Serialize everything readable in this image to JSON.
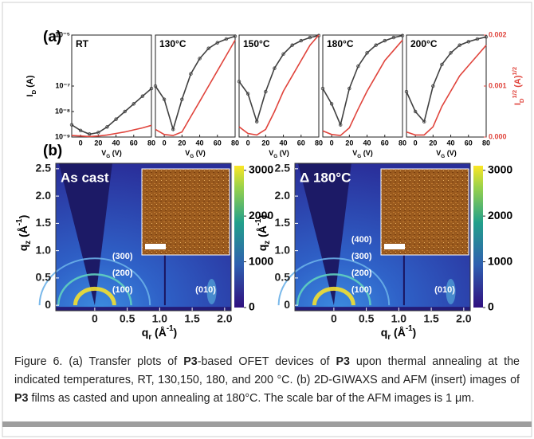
{
  "figure": {
    "panel_a": {
      "label": "(a)",
      "ylabel": [
        "I",
        "D",
        " (A)"
      ],
      "y2label": [
        "I",
        "D",
        "1/2",
        " (A)",
        "1/2"
      ],
      "xlabel": [
        "V",
        "G",
        " (V)"
      ],
      "log_y": true,
      "xlim": [
        -10,
        80
      ],
      "xticks": [
        0,
        20,
        40,
        60,
        80
      ],
      "ylim": [
        1e-09,
        1e-05
      ],
      "yticks": [
        {
          "value": 1e-09,
          "label": "10⁻⁹"
        },
        {
          "value": 1e-08,
          "label": "10⁻⁸"
        },
        {
          "value": 1e-07,
          "label": "10⁻⁷"
        },
        {
          "value": 1e-05,
          "label": "10⁻⁵"
        }
      ],
      "y2lim": [
        0,
        0.002
      ],
      "y2ticks": [
        {
          "value": 0,
          "label": "0.000"
        },
        {
          "value": 0.001,
          "label": "0.001"
        },
        {
          "value": 0.002,
          "label": "0.002"
        }
      ],
      "x": [
        -10,
        0,
        10,
        20,
        30,
        40,
        50,
        60,
        70,
        80
      ],
      "plots": [
        {
          "title": "RT",
          "series": [
            {
              "color": "#404040",
              "values": [
                3e-09,
                1.8e-09,
                1.3e-09,
                1.5e-09,
                2.5e-09,
                5e-09,
                1e-08,
                2e-08,
                4e-08,
                8e-08
              ]
            },
            {
              "color": "#e0443c",
              "axis": "y2",
              "values": [
                3e-05,
                2e-05,
                1e-05,
                2e-05,
                4e-05,
                7e-05,
                0.0001,
                0.00014,
                0.00018,
                0.00023
              ]
            }
          ]
        },
        {
          "title": "130°C",
          "series": [
            {
              "color": "#404040",
              "values": [
                1e-07,
                3e-08,
                2e-09,
                3e-08,
                3e-07,
                1.2e-06,
                3e-06,
                5e-06,
                7e-06,
                9e-06
              ]
            },
            {
              "color": "#e0443c",
              "axis": "y2",
              "values": [
                0.00015,
                5e-05,
                3e-05,
                0.0001,
                0.0004,
                0.0007,
                0.001,
                0.0013,
                0.0016,
                0.0019
              ]
            }
          ]
        },
        {
          "title": "150°C",
          "series": [
            {
              "color": "#404040",
              "values": [
                1.5e-07,
                5e-08,
                4e-09,
                6e-08,
                5e-07,
                1.8e-06,
                4e-06,
                6e-06,
                8e-06,
                9.5e-06
              ]
            },
            {
              "color": "#e0443c",
              "axis": "y2",
              "values": [
                0.0002,
                7e-05,
                4e-05,
                0.00015,
                0.0005,
                0.0009,
                0.0012,
                0.0015,
                0.0018,
                0.002
              ]
            }
          ]
        },
        {
          "title": "180°C",
          "series": [
            {
              "color": "#404040",
              "values": [
                8e-08,
                2e-08,
                3e-09,
                8e-08,
                6e-07,
                2e-06,
                4e-06,
                6e-06,
                8e-06,
                9.5e-06
              ]
            },
            {
              "color": "#e0443c",
              "axis": "y2",
              "values": [
                0.00012,
                5e-05,
                3e-05,
                0.00018,
                0.00055,
                0.0009,
                0.0012,
                0.0015,
                0.0017,
                0.0019
              ]
            }
          ]
        },
        {
          "title": "200°C",
          "series": [
            {
              "color": "#404040",
              "values": [
                6e-08,
                1e-08,
                4e-09,
                1e-07,
                7e-07,
                2e-06,
                4e-06,
                5.5e-06,
                7e-06,
                8.5e-06
              ]
            },
            {
              "color": "#e0443c",
              "axis": "y2",
              "values": [
                0.0001,
                4e-05,
                4e-05,
                0.0002,
                0.0006,
                0.0009,
                0.0012,
                0.0014,
                0.0016,
                0.0018
              ]
            }
          ]
        }
      ]
    },
    "panel_b": {
      "label": "(b)",
      "xlabel": [
        "q",
        "r",
        " (Å",
        "-1",
        ")"
      ],
      "ylabel": [
        "q",
        "z",
        " (Å",
        "-1",
        ")"
      ],
      "xlim": [
        -0.6,
        2.1
      ],
      "xticks": [
        0,
        0.5,
        {
          "value": 1,
          "label": "1.0"
        },
        1.5,
        {
          "value": 2,
          "label": "2.0"
        }
      ],
      "ylim": [
        -0.1,
        2.6
      ],
      "yticks": [
        0,
        0.5,
        {
          "value": 1,
          "label": "1.0"
        },
        1.5,
        {
          "value": 2,
          "label": "2.0"
        },
        2.5
      ],
      "clim": [
        0,
        3100
      ],
      "cticks": [
        0,
        1000,
        2000,
        3000
      ],
      "images": [
        {
          "title": "As cast",
          "peaks": [
            "(300)",
            "(200)",
            "(100)",
            "(010)"
          ]
        },
        {
          "title": "Δ 180°C",
          "peaks": [
            "(400)",
            "(300)",
            "(200)",
            "(100)",
            "(010)"
          ]
        }
      ]
    },
    "caption": [
      "Figure 6. (a) Transfer plots of ",
      "P3",
      "-based OFET devices of ",
      "P3",
      " upon thermal annealing at the indicated temperatures, RT, 130,150, 180, and 200 °C. (b) 2D-GIWAXS and AFM (insert) images of ",
      "P3",
      " films as casted and upon annealing at 180°C. The scale bar of the AFM images is 1 μm."
    ]
  }
}
